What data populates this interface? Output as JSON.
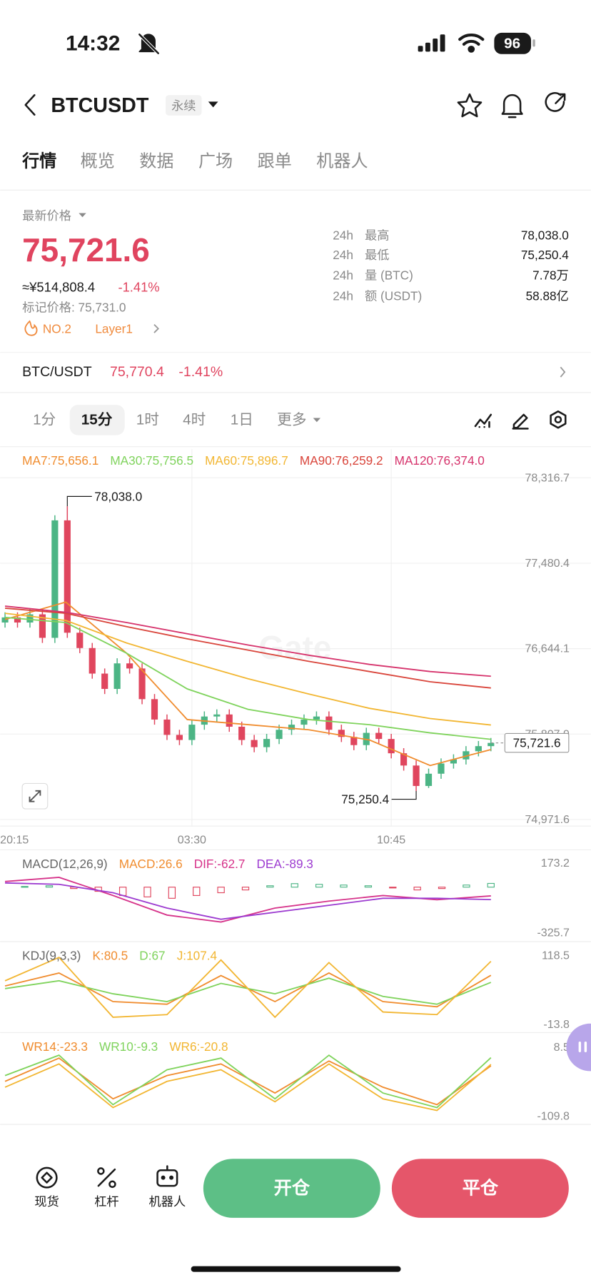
{
  "status": {
    "time": "14:32",
    "battery": "96"
  },
  "header": {
    "symbol": "BTCUSDT",
    "tag": "永续"
  },
  "tabs": [
    "行情",
    "概览",
    "数据",
    "广场",
    "跟单",
    "机器人"
  ],
  "price": {
    "label": "最新价格",
    "last": "75,721.6",
    "cny": "≈¥514,808.4",
    "change": "-1.41%",
    "mark": "标记价格: 75,731.0",
    "rank": "NO.2",
    "sector": "Layer1"
  },
  "stats": [
    {
      "period": "24h",
      "label": "最高",
      "value": "78,038.0"
    },
    {
      "period": "24h",
      "label": "最低",
      "value": "75,250.4"
    },
    {
      "period": "24h",
      "label": "量 (BTC)",
      "value": "7.78万"
    },
    {
      "period": "24h",
      "label": "额 (USDT)",
      "value": "58.88亿"
    }
  ],
  "spot": {
    "pair": "BTC/USDT",
    "price": "75,770.4",
    "change": "-1.41%"
  },
  "intervals": [
    "1分",
    "15分",
    "1时",
    "4时",
    "1日",
    "更多"
  ],
  "kline": {
    "type": "candlestick",
    "up_color": "#4cb585",
    "down_color": "#e0465e",
    "ylim": [
      74971.6,
      78316.7
    ],
    "yticks": [
      {
        "value": 78316.7,
        "label": "78,316.7"
      },
      {
        "value": 77480.4,
        "label": "77,480.4"
      },
      {
        "value": 76644.1,
        "label": "76,644.1"
      },
      {
        "value": 75807.9,
        "label": "75,807.9"
      },
      {
        "value": 74971.6,
        "label": "74,971.6"
      }
    ],
    "categories": [
      "20:15",
      null,
      null,
      null,
      null,
      null,
      null,
      null,
      null,
      null,
      null,
      null,
      null,
      null,
      null,
      "03:30",
      null,
      null,
      null,
      null,
      null,
      null,
      null,
      null,
      null,
      null,
      null,
      null,
      null,
      null,
      null,
      "10:45",
      null,
      null,
      null,
      null,
      null,
      null,
      null,
      null
    ],
    "open": [
      76900,
      76950,
      76900,
      76980,
      76750,
      77900,
      76800,
      76650,
      76400,
      76250,
      76500,
      76450,
      76150,
      75950,
      75800,
      75750,
      75900,
      75980,
      76000,
      75880,
      75750,
      75680,
      75760,
      75850,
      75900,
      75950,
      75980,
      75850,
      75780,
      75700,
      75820,
      75760,
      75620,
      75500,
      75300,
      75420,
      75520,
      75560,
      75640,
      75690
    ],
    "high": [
      77000,
      77000,
      77030,
      77030,
      77950,
      78038,
      76850,
      76700,
      76450,
      76550,
      76550,
      76500,
      76200,
      76000,
      75850,
      75950,
      76030,
      76050,
      76050,
      75930,
      75800,
      75810,
      75900,
      75950,
      76000,
      76030,
      76030,
      75900,
      75830,
      75870,
      75870,
      75810,
      75670,
      75550,
      75470,
      75570,
      75610,
      75690,
      75740,
      75770
    ],
    "low": [
      76850,
      76850,
      76850,
      76700,
      76700,
      76750,
      76600,
      76350,
      76200,
      76200,
      76400,
      76100,
      75900,
      75750,
      75700,
      75700,
      75850,
      75930,
      75830,
      75700,
      75630,
      75630,
      75710,
      75800,
      75850,
      75900,
      75800,
      75730,
      75650,
      75650,
      75710,
      75570,
      75450,
      75250.4,
      75280,
      75370,
      75470,
      75510,
      75590,
      75640
    ],
    "close": [
      76950,
      76900,
      76980,
      76750,
      77900,
      76800,
      76650,
      76400,
      76250,
      76500,
      76450,
      76150,
      75950,
      75800,
      75750,
      75900,
      75980,
      76000,
      75880,
      75750,
      75680,
      75760,
      75850,
      75900,
      75950,
      75980,
      75850,
      75780,
      75700,
      75820,
      75760,
      75620,
      75500,
      75300,
      75420,
      75520,
      75560,
      75640,
      75690,
      75721.6
    ],
    "ma": [
      {
        "name": "MA7:75,656.1",
        "color": "#f08c2e",
        "values": [
          76930,
          77100,
          76600,
          75950,
          75900,
          75850,
          75750,
          75500,
          75656.1
        ]
      },
      {
        "name": "MA30:75,756.5",
        "color": "#7fd35c",
        "values": [
          76950,
          76900,
          76600,
          76250,
          76050,
          75950,
          75900,
          75820,
          75756.5
        ]
      },
      {
        "name": "MA60:75,896.7",
        "color": "#f2b632",
        "values": [
          76990,
          76920,
          76700,
          76520,
          76350,
          76200,
          76060,
          75960,
          75896.7
        ]
      },
      {
        "name": "MA90:76,259.2",
        "color": "#d9453b",
        "values": [
          77040,
          76990,
          76860,
          76740,
          76630,
          76520,
          76420,
          76320,
          76259.2
        ]
      },
      {
        "name": "MA120:76,374.0",
        "color": "#d6336c",
        "values": [
          77060,
          77000,
          76900,
          76790,
          76680,
          76580,
          76490,
          76420,
          76374
        ]
      }
    ],
    "annotations": {
      "high": "78,038.0",
      "low": "75,250.4",
      "last": "75,721.6"
    },
    "panels": [
      {
        "title": "MACD(12,26,9)",
        "ylim": [
          -325.7,
          173.2
        ],
        "bars": {
          "name": "MACD:26.6",
          "color": "#f08c2e",
          "up_color": "#4cb585",
          "down_color": "#e0465e",
          "values": [
            5,
            10,
            -10,
            -30,
            -60,
            -70,
            -80,
            -60,
            -40,
            -20,
            10,
            25,
            20,
            15,
            10,
            -5,
            -20,
            -10,
            15,
            26.6
          ]
        },
        "series": [
          {
            "name": "DIF:-62.7",
            "color": "#d6338a",
            "values": [
              40,
              70,
              -60,
              -200,
              -250,
              -150,
              -100,
              -60,
              -90,
              -62.7
            ]
          },
          {
            "name": "DEA:-89.3",
            "color": "#9c3ad0",
            "values": [
              30,
              20,
              -40,
              -150,
              -230,
              -180,
              -130,
              -80,
              -80,
              -89.3
            ]
          }
        ]
      },
      {
        "title": "KDJ(9,3,3)",
        "ylim": [
          -13.8,
          118.5
        ],
        "series": [
          {
            "name": "K:80.5",
            "color": "#f08c2e",
            "values": [
              60,
              85,
              30,
              25,
              80,
              30,
              85,
              30,
              20,
              80.5
            ]
          },
          {
            "name": "D:67",
            "color": "#7fd35c",
            "values": [
              55,
              70,
              45,
              30,
              65,
              45,
              75,
              40,
              25,
              67
            ]
          },
          {
            "name": "J:107.4",
            "color": "#f2b632",
            "values": [
              70,
              115,
              0,
              5,
              110,
              0,
              105,
              10,
              5,
              107.4
            ]
          }
        ]
      },
      {
        "ylim": [
          -109.8,
          8.5
        ],
        "series": [
          {
            "name": "WR14:-23.3",
            "color": "#f08c2e",
            "values": [
              -50,
              -10,
              -80,
              -40,
              -20,
              -70,
              -15,
              -60,
              -90,
              -23.3
            ]
          },
          {
            "name": "WR10:-9.3",
            "color": "#7fd35c",
            "values": [
              -40,
              -5,
              -90,
              -30,
              -10,
              -80,
              -5,
              -70,
              -95,
              -9.3
            ]
          },
          {
            "name": "WR6:-20.8",
            "color": "#f2b632",
            "values": [
              -60,
              -20,
              -95,
              -50,
              -30,
              -85,
              -20,
              -80,
              -100,
              -20.8
            ]
          }
        ]
      }
    ]
  },
  "footer": {
    "links": [
      "现货",
      "杠杆",
      "机器人"
    ],
    "open": "开仓",
    "close": "平仓"
  }
}
